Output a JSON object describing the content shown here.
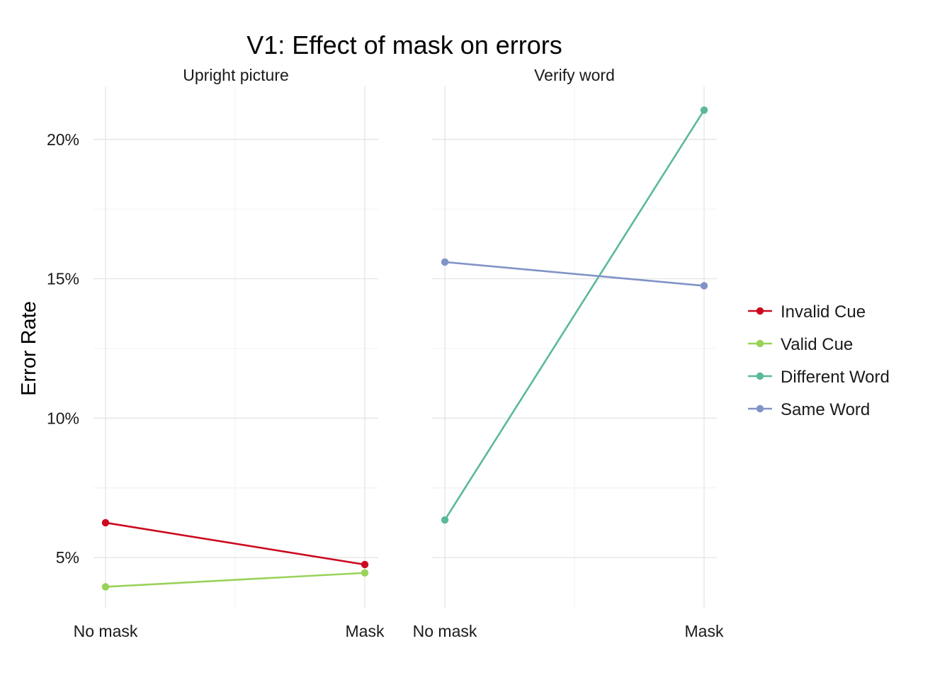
{
  "chart_data": {
    "type": "line",
    "title": "V1: Effect of mask on errors",
    "xlabel": "",
    "ylabel": "Error Rate",
    "categories": [
      "No mask",
      "Mask"
    ],
    "ylim": [
      3.2,
      21.9
    ],
    "y_ticks": [
      5,
      10,
      15,
      20
    ],
    "y_tick_labels": [
      "5%",
      "10%",
      "15%",
      "20%"
    ],
    "grid": true,
    "legend_position": "right",
    "panels": [
      {
        "label": "Upright picture",
        "series": [
          {
            "name": "Invalid Cue",
            "color": "#cc0a1f",
            "values": [
              6.25,
              4.75
            ]
          },
          {
            "name": "Valid Cue",
            "color": "#99d259",
            "values": [
              3.95,
              4.45
            ]
          }
        ]
      },
      {
        "label": "Verify word",
        "series": [
          {
            "name": "Different Word",
            "color": "#5ab99a",
            "values": [
              6.35,
              21.05
            ]
          },
          {
            "name": "Same Word",
            "color": "#8193c6",
            "values": [
              15.6,
              14.75
            ]
          }
        ]
      }
    ]
  }
}
